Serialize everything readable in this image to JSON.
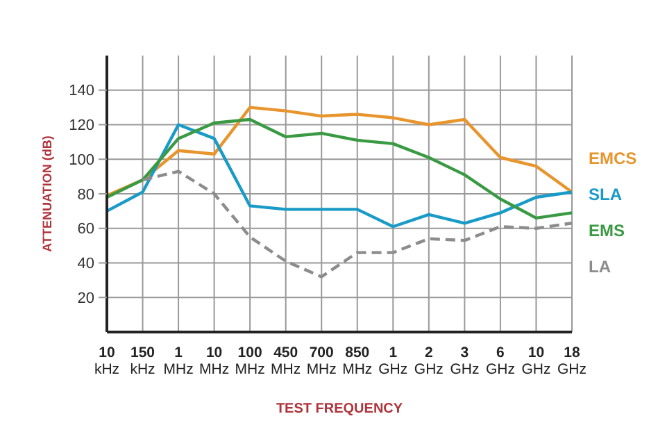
{
  "chart_data": {
    "type": "line",
    "xlabel": "TEST FREQUENCY",
    "ylabel": "ATTENUATION (dB)",
    "categories": [
      "10 kHz",
      "150 kHz",
      "1 MHz",
      "10 MHz",
      "100 MHz",
      "450 MHz",
      "700 MHz",
      "850 MHz",
      "1 GHz",
      "2 GHz",
      "3 GHz",
      "6 GHz",
      "10 GHz",
      "18 GHz"
    ],
    "ylim": [
      0,
      160
    ],
    "yticks": [
      20,
      40,
      60,
      80,
      100,
      120,
      140
    ],
    "grid": true,
    "legend": "right",
    "series": [
      {
        "name": "EMCS",
        "color": "#e8952e",
        "line_style": "solid",
        "values": [
          79,
          88,
          105,
          103,
          130,
          128,
          125,
          126,
          124,
          120,
          123,
          101,
          96,
          81
        ]
      },
      {
        "name": "SLA",
        "color": "#1a9bc7",
        "line_style": "solid",
        "values": [
          70,
          81,
          120,
          112,
          73,
          71,
          71,
          71,
          61,
          68,
          63,
          69,
          78,
          81
        ]
      },
      {
        "name": "EMS",
        "color": "#3a9a43",
        "line_style": "solid",
        "values": [
          78,
          88,
          112,
          121,
          123,
          113,
          115,
          111,
          109,
          101,
          91,
          77,
          66,
          69
        ]
      },
      {
        "name": "LA",
        "color": "#8c8c8c",
        "line_style": "dashed",
        "values": [
          null,
          88,
          93,
          80,
          55,
          41,
          32,
          46,
          46,
          54,
          53,
          61,
          60,
          63
        ]
      }
    ]
  }
}
